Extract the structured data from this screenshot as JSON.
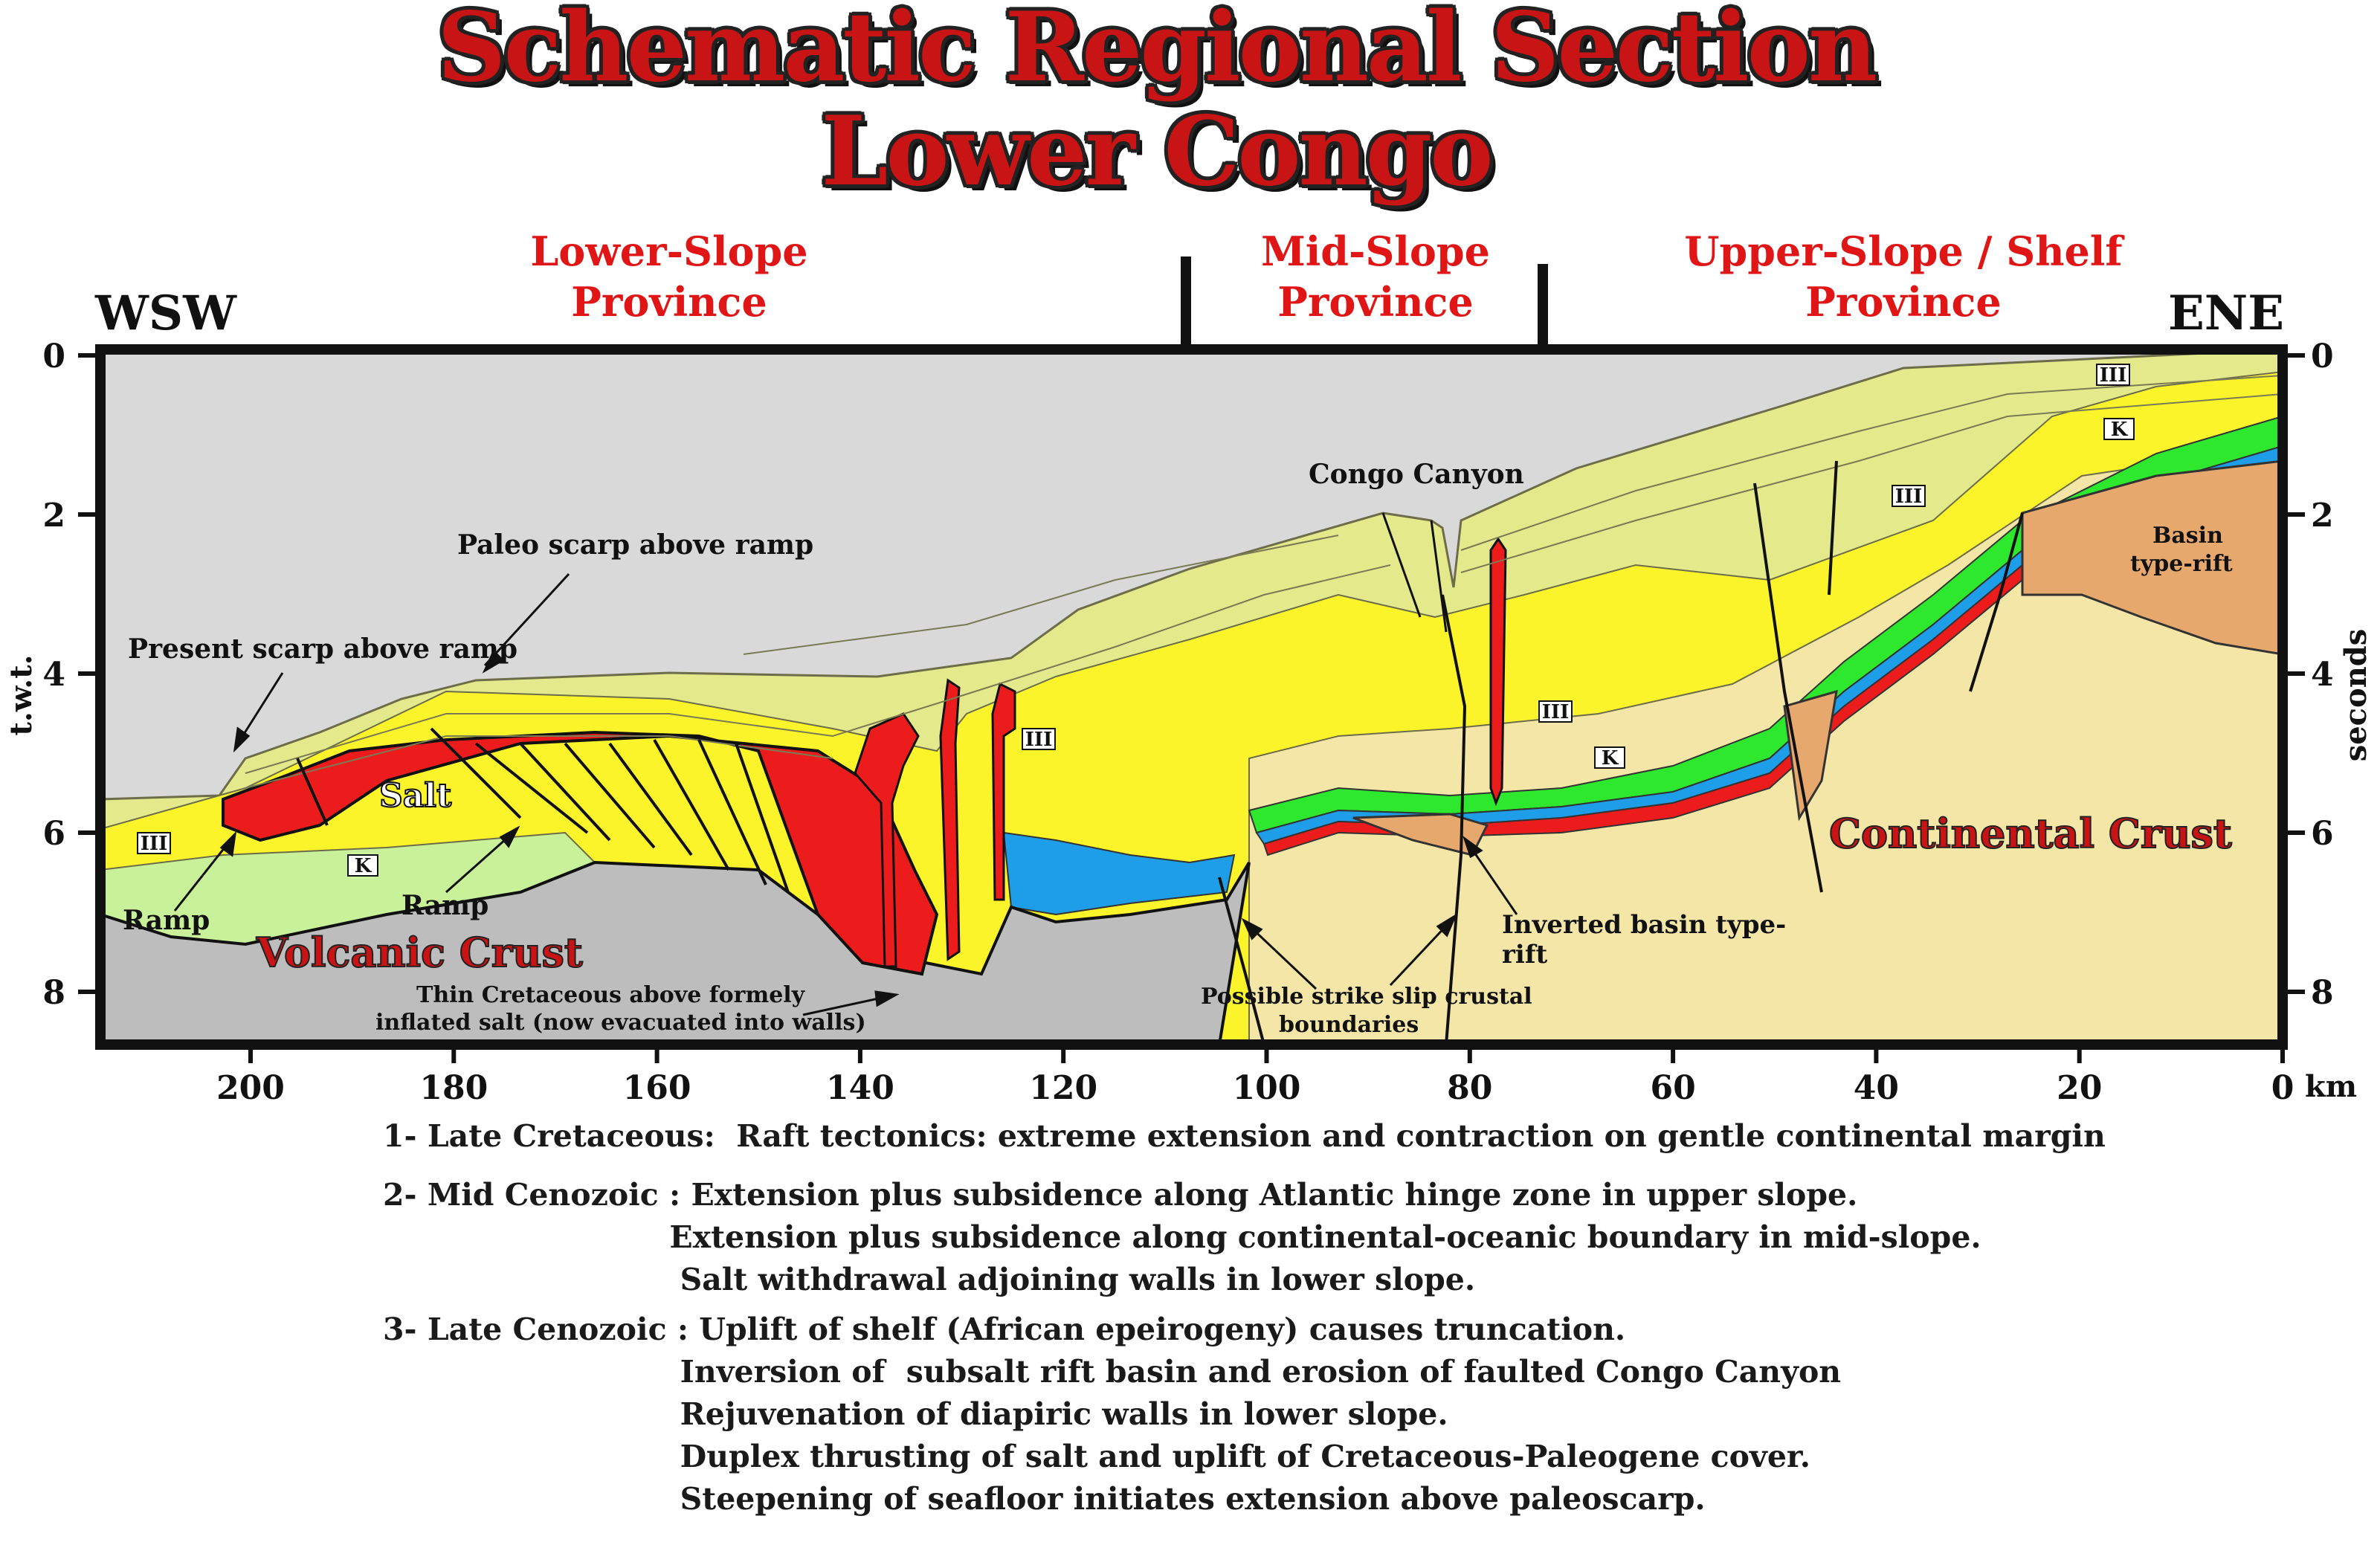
{
  "title": {
    "line1": "Schematic Regional Section",
    "line2": "Lower Congo"
  },
  "direction": {
    "west": "WSW",
    "east": "ENE"
  },
  "provinces": [
    {
      "line1": "Lower-Slope",
      "line2": "Province"
    },
    {
      "line1": "Mid-Slope",
      "line2": "Province"
    },
    {
      "line1": "Upper-Slope / Shelf",
      "line2": "Province"
    }
  ],
  "axes": {
    "left_label": "t.w.t.",
    "right_label": "seconds",
    "y_ticks": [
      "0",
      "2",
      "4",
      "6",
      "8"
    ],
    "x_ticks": [
      "200",
      "180",
      "160",
      "140",
      "120",
      "100",
      "80",
      "60",
      "40",
      "20",
      "0"
    ],
    "x_unit": "km"
  },
  "labels": {
    "congo_canyon": "Congo Canyon",
    "paleo_scarp": "Paleo scarp above ramp",
    "present_scarp": "Present scarp above ramp",
    "salt": "Salt",
    "ramp_left": "Ramp",
    "ramp_mid": "Ramp",
    "volcanic_crust": "Volcanic Crust",
    "continental_crust": "Continental Crust",
    "thin_cretaceous_1": "Thin Cretaceous above formely",
    "thin_cretaceous_2": "inflated salt (now evacuated into walls)",
    "strike_slip_1": "Possible strike slip crustal",
    "strike_slip_2": "boundaries",
    "inverted_basin_1": "Inverted basin type-",
    "inverted_basin_2": "rift",
    "basin_rift_1": "Basin",
    "basin_rift_2": "type-rift",
    "unit_III": "III",
    "unit_K": "K"
  },
  "notes": [
    "1- Late Cretaceous:  Raft tectonics: extreme extension and contraction on gentle continental margin",
    "2- Mid Cenozoic : Extension plus subsidence along Atlantic hinge zone in upper slope.",
    "                           Extension plus subsidence along continental-oceanic boundary in mid-slope.",
    "                            Salt withdrawal adjoining walls in lower slope.",
    "3- Late Cenozoic : Uplift of shelf (African epeirogeny) causes truncation.",
    "                            Inversion of  subsalt rift basin and erosion of faulted Congo Canyon",
    "                            Rejuvenation of diapiric walls in lower slope.",
    "                            Duplex thrusting of salt and uplift of Cretaceous-Paleogene cover.",
    "                            Steepening of seafloor initiates extension above paleoscarp."
  ],
  "colors": {
    "water": "#a9c6e6",
    "volcanic_crust": "#bdbdbd",
    "continental_crust": "#d9d9d9",
    "salt": "#ec1c1c",
    "tertiary_yellow": "#fbf42a",
    "upper_tertiary": "#e4e98c",
    "light_tan": "#f3e6a6",
    "cretaceous_green": "#c9f19a",
    "bright_green": "#2ee82e",
    "blue": "#1e9de8",
    "orange_rift": "#e7a86e",
    "title_red": "#c81414",
    "province_red": "#e01616"
  }
}
